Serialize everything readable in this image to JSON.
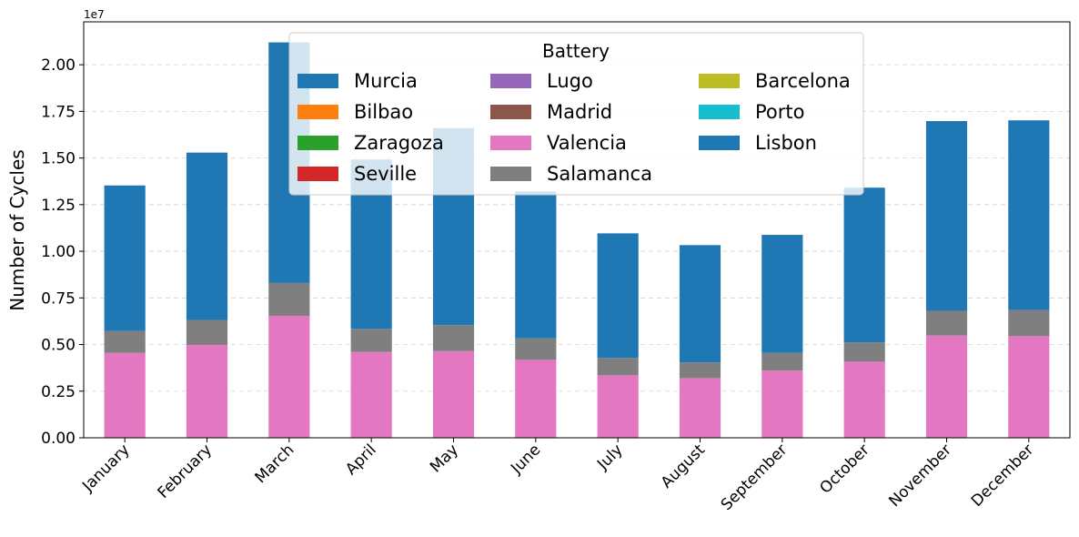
{
  "chart_data": {
    "type": "bar",
    "stacked": true,
    "title": "",
    "xlabel": "",
    "ylabel": "Number of Cycles",
    "y_offset_label": "1e7",
    "ylim": [
      0,
      22300000
    ],
    "yticks": [
      0,
      2500000,
      5000000,
      7500000,
      10000000,
      12500000,
      15000000,
      17500000,
      20000000
    ],
    "ytick_labels": [
      "0.00",
      "0.25",
      "0.50",
      "0.75",
      "1.00",
      "1.25",
      "1.50",
      "1.75",
      "2.00"
    ],
    "grid": "y-dashed",
    "legend_title": "Battery",
    "legend_position": "top-center",
    "legend_columns": 3,
    "categories": [
      "January",
      "February",
      "March",
      "April",
      "May",
      "June",
      "July",
      "August",
      "September",
      "October",
      "November",
      "December"
    ],
    "series": [
      {
        "name": "Murcia",
        "color": "#1f77b4",
        "values": [
          0,
          0,
          0,
          0,
          0,
          0,
          0,
          0,
          0,
          0,
          0,
          0
        ]
      },
      {
        "name": "Bilbao",
        "color": "#ff7f0e",
        "values": [
          0,
          0,
          0,
          0,
          0,
          0,
          0,
          0,
          0,
          0,
          0,
          0
        ]
      },
      {
        "name": "Zaragoza",
        "color": "#2ca02c",
        "values": [
          0,
          0,
          0,
          0,
          0,
          0,
          0,
          0,
          0,
          0,
          0,
          0
        ]
      },
      {
        "name": "Seville",
        "color": "#d62728",
        "values": [
          0,
          0,
          0,
          0,
          0,
          0,
          0,
          0,
          0,
          0,
          0,
          0
        ]
      },
      {
        "name": "Lugo",
        "color": "#9467bd",
        "values": [
          0,
          0,
          0,
          0,
          0,
          0,
          0,
          0,
          0,
          0,
          0,
          0
        ]
      },
      {
        "name": "Madrid",
        "color": "#8c564b",
        "values": [
          0,
          0,
          0,
          0,
          0,
          0,
          0,
          0,
          0,
          0,
          0,
          0
        ]
      },
      {
        "name": "Valencia",
        "color": "#e377c2",
        "values": [
          4550000,
          4980000,
          6540000,
          4600000,
          4650000,
          4180000,
          3350000,
          3200000,
          3600000,
          4080000,
          5480000,
          5450000
        ]
      },
      {
        "name": "Salamanca",
        "color": "#7f7f7f",
        "values": [
          1180000,
          1340000,
          1760000,
          1240000,
          1390000,
          1150000,
          930000,
          840000,
          950000,
          1030000,
          1330000,
          1400000
        ]
      },
      {
        "name": "Barcelona",
        "color": "#bcbd22",
        "values": [
          0,
          0,
          0,
          0,
          0,
          0,
          0,
          0,
          0,
          0,
          0,
          0
        ]
      },
      {
        "name": "Porto",
        "color": "#17becf",
        "values": [
          0,
          0,
          0,
          0,
          0,
          0,
          0,
          0,
          0,
          0,
          0,
          0
        ]
      },
      {
        "name": "Lisbon",
        "color": "#1f77b4",
        "values": [
          7800000,
          8970000,
          12900000,
          9080000,
          10560000,
          7880000,
          6680000,
          6290000,
          6330000,
          8300000,
          10170000,
          10170000
        ]
      }
    ]
  }
}
